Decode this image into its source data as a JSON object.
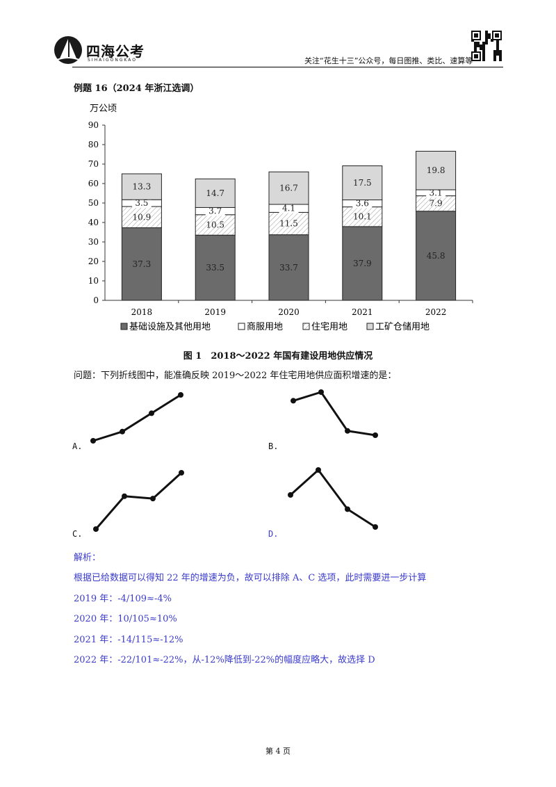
{
  "header": {
    "logo_text": "四海公考",
    "logo_sub": "SIHAIGONGKAO",
    "slogan": "关注“花生十三”公众号，每日图推、类比、速算等"
  },
  "example_title": "例题 16（2024 年浙江选调）",
  "chart_data": {
    "type": "bar",
    "stacked": true,
    "unit_label": "万公顷",
    "categories": [
      "2018",
      "2019",
      "2020",
      "2021",
      "2022"
    ],
    "ylim": [
      0,
      90
    ],
    "yticks": [
      "0",
      "10",
      "20",
      "30",
      "40",
      "50",
      "60",
      "70",
      "80",
      "90"
    ],
    "series": [
      {
        "name": "基础设施及其他用地",
        "values": [
          37.3,
          33.5,
          33.7,
          37.9,
          45.8
        ],
        "labels": [
          "37.3",
          "33.5",
          "33.7",
          "37.9",
          "45.8"
        ],
        "color": "#6b6b6b",
        "pattern": "solid"
      },
      {
        "name": "住宅用地",
        "values": [
          10.9,
          10.5,
          11.5,
          10.1,
          7.9
        ],
        "labels": [
          "10.9",
          "10.5",
          "11.5",
          "10.1",
          "7.9"
        ],
        "color": "#ffffff",
        "pattern": "hatch"
      },
      {
        "name": "商服用地",
        "values": [
          3.5,
          3.7,
          4.1,
          3.6,
          3.1
        ],
        "labels": [
          "3.5",
          "3.7",
          "4.1",
          "3.6",
          "3.1"
        ],
        "color": "#ffffff",
        "pattern": "white"
      },
      {
        "name": "工矿仓储用地",
        "values": [
          13.3,
          14.7,
          16.7,
          17.5,
          19.8
        ],
        "labels": [
          "13.3",
          "14.7",
          "16.7",
          "17.5",
          "19.8"
        ],
        "color": "#d8d8d8",
        "pattern": "solid"
      }
    ],
    "legend": {
      "position": "bottom",
      "order": [
        0,
        2,
        1,
        3
      ]
    },
    "grid": false
  },
  "figure_caption": "图 1　2018～2022 年国有建设用地供应情况",
  "question": "问题：下列折线图中，能准确反映 2019～2022 年住宅用地供应面积增速的是：",
  "options": [
    {
      "label": "A.",
      "values": [
        2,
        4,
        8,
        12
      ],
      "color": "#111111"
    },
    {
      "label": "B.",
      "values": [
        10,
        14,
        -4,
        -6
      ],
      "color": "#111111"
    },
    {
      "label": "C.",
      "values": [
        -4,
        10,
        9,
        20
      ],
      "color": "#111111"
    },
    {
      "label": "D.",
      "values": [
        -4,
        10,
        -12,
        -22
      ],
      "color": "#3a3acc"
    }
  ],
  "analysis": {
    "heading": "解析：",
    "lines": [
      "根据已给数据可以得知 22 年的增速为负，故可以排除 A、C 选项，此时需要进一步计算",
      "2019 年：-4/109≈-4%",
      "2020 年：10/105≈10%",
      "2021 年：-14/115≈-12%",
      "2022 年：-22/101≈-22%，从-12%降低到-22%的幅度应略大，故选择 D"
    ]
  },
  "page_number": "第 4 页"
}
